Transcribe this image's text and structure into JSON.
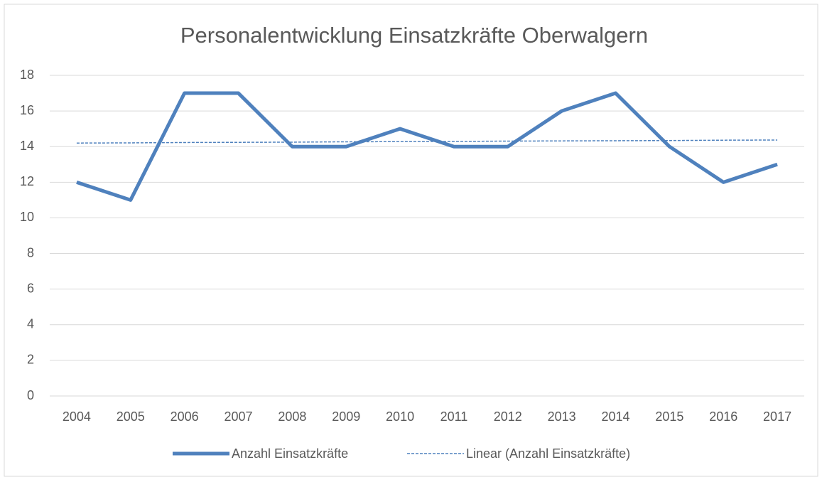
{
  "chart_data": {
    "type": "line",
    "title": "Personalentwicklung Einsatzkräfte Oberwalgern",
    "categories": [
      "2004",
      "2005",
      "2006",
      "2007",
      "2008",
      "2009",
      "2010",
      "2011",
      "2012",
      "2013",
      "2014",
      "2015",
      "2016",
      "2017"
    ],
    "series": [
      {
        "name": "Anzahl Einsatzkräfte",
        "color": "#4f81bd",
        "dash": false,
        "values": [
          12,
          11,
          17,
          17,
          14,
          14,
          15,
          14,
          14,
          16,
          17,
          14,
          12,
          13
        ]
      },
      {
        "name": "Linear (Anzahl Einsatzkräfte)",
        "color": "#4f81bd",
        "dash": true,
        "values": [
          14.2,
          14.21,
          14.23,
          14.24,
          14.25,
          14.27,
          14.28,
          14.29,
          14.31,
          14.32,
          14.33,
          14.34,
          14.36,
          14.37
        ]
      }
    ],
    "ylim": [
      0,
      18
    ],
    "yticks": [
      0,
      2,
      4,
      6,
      8,
      10,
      12,
      14,
      16,
      18
    ],
    "grid": true,
    "legend": "bottom"
  }
}
